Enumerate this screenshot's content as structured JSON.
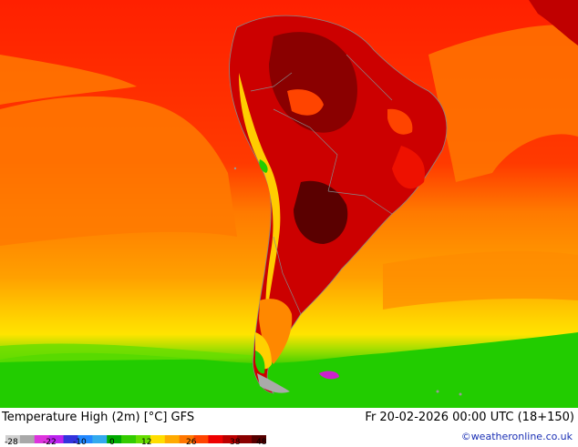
{
  "map": {
    "title": "Temperature High (2m) [°C] GFS",
    "datetime": "Fr 20-02-2026 00:00 UTC (18+150)",
    "credit": "©weatheronline.co.uk",
    "legend_ticks": [
      "-28",
      "-22",
      "-10",
      "0",
      "12",
      "26",
      "38",
      "48"
    ],
    "legend_colors": [
      "#d0d0d0",
      "#a8a8a8",
      "#dd33dd",
      "#bb22ee",
      "#3333dd",
      "#2288ff",
      "#33aaee",
      "#00aa00",
      "#33cc00",
      "#66dd00",
      "#ffdd00",
      "#ffaa00",
      "#ff7700",
      "#ff4400",
      "#ee0000",
      "#bb0000",
      "#8a0000",
      "#550000"
    ],
    "colors": {
      "ocean_warm": "#ff1f00",
      "ocean_mid": "#ff7a00",
      "ocean_cool": "#ffbb00",
      "ocean_yellow": "#ffe000",
      "ocean_green": "#22cc00",
      "land_hot": "#c00000",
      "land_very_hot": "#7a0000",
      "credit": "#1a2fb4"
    }
  }
}
